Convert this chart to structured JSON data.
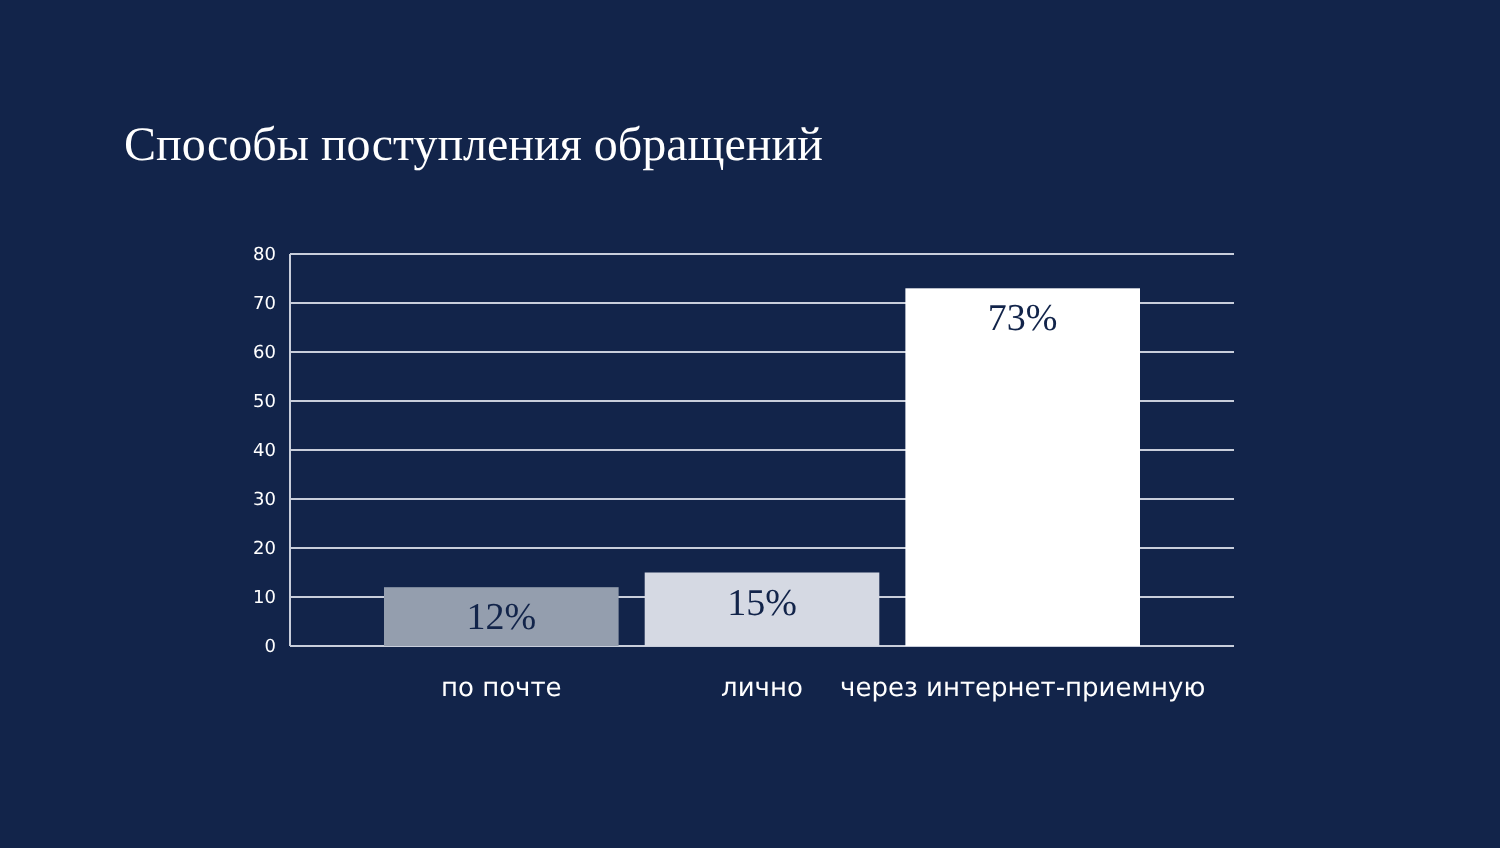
{
  "chart_data": {
    "type": "bar",
    "title": "Способы поступления обращений",
    "categories": [
      "по почте",
      "лично",
      "через интернет-приемную"
    ],
    "values": [
      12,
      15,
      73
    ],
    "colors": [
      "#949eae",
      "#d5d9e3",
      "#ffffff"
    ],
    "value_labels": [
      "12%",
      "15%",
      "73%"
    ],
    "ylim": [
      0,
      80
    ],
    "yticks": [
      0,
      10,
      20,
      30,
      40,
      50,
      60,
      70,
      80
    ],
    "grid": "y"
  }
}
